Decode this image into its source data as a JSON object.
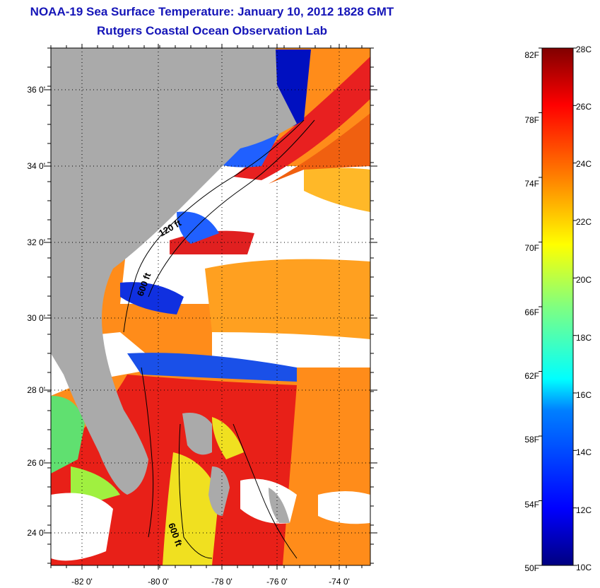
{
  "header": {
    "title": "NOAA-19 Sea Surface Temperature:  January 10, 2012 1828 GMT",
    "subtitle": "Rutgers Coastal Ocean Observation Lab"
  },
  "map": {
    "longitude_labels": [
      "-82 0'",
      "-80 0'",
      "-78 0'",
      "-76 0'",
      "-74 0'"
    ],
    "latitude_labels": [
      "36 0'",
      "34 0'",
      "32 0'",
      "30 0'",
      "28 0'",
      "26 0'",
      "24 0'"
    ],
    "contour_labels": [
      "120 ft",
      "600 ft",
      "600 ft"
    ],
    "land_color": "#aaaaaa",
    "cloud_color": "#ffffff"
  },
  "colorbar": {
    "fahrenheit_labels": [
      "82F",
      "78F",
      "74F",
      "70F",
      "66F",
      "62F",
      "58F",
      "54F",
      "50F"
    ],
    "celsius_labels": [
      "28C",
      "26C",
      "24C",
      "22C",
      "20C",
      "18C",
      "16C",
      "14C",
      "12C",
      "10C"
    ],
    "colors": [
      "#000080",
      "#0000ff",
      "#0080ff",
      "#00ffff",
      "#80ff80",
      "#ffff00",
      "#ff8000",
      "#ff0000",
      "#800000"
    ]
  }
}
